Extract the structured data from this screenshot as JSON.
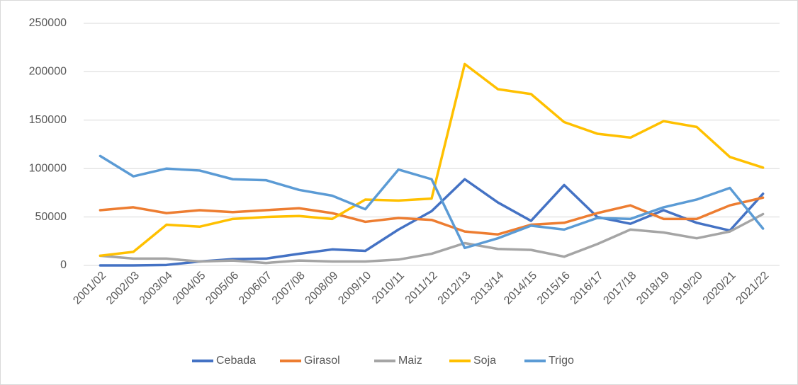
{
  "chart_data": {
    "type": "line",
    "categories": [
      "2001/02",
      "2002/03",
      "2003/04",
      "2004/05",
      "2005/06",
      "2006/07",
      "2007/08",
      "2008/09",
      "2009/10",
      "2010/11",
      "2011/12",
      "2012/13",
      "2013/14",
      "2014/15",
      "2015/16",
      "2016/17",
      "2017/18",
      "2018/19",
      "2019/20",
      "2020/21",
      "2021/22"
    ],
    "series": [
      {
        "name": "Cebada",
        "color": "#4472c4",
        "values": [
          0,
          0,
          500,
          4000,
          6500,
          7000,
          12000,
          16500,
          15000,
          37000,
          56000,
          89000,
          65000,
          46000,
          83000,
          50000,
          43000,
          57000,
          44000,
          36000,
          74000
        ]
      },
      {
        "name": "Girasol",
        "color": "#ed7d31",
        "values": [
          57000,
          60000,
          54000,
          57000,
          55000,
          57000,
          59000,
          54000,
          45000,
          49000,
          47000,
          35000,
          32000,
          42000,
          44000,
          54000,
          62000,
          48000,
          48000,
          62000,
          70000
        ]
      },
      {
        "name": "Maiz",
        "color": "#a5a5a5",
        "values": [
          10000,
          7000,
          7000,
          4000,
          5000,
          2500,
          5000,
          4000,
          4000,
          6000,
          12000,
          23000,
          17000,
          16000,
          9000,
          22000,
          37000,
          34000,
          28000,
          35000,
          53000
        ]
      },
      {
        "name": "Soja",
        "color": "#ffc000",
        "values": [
          10000,
          14000,
          42000,
          40000,
          48000,
          50000,
          51000,
          48000,
          68000,
          67000,
          69000,
          208000,
          182000,
          177000,
          148000,
          136000,
          132000,
          149000,
          143000,
          112000,
          101000
        ]
      },
      {
        "name": "Trigo",
        "color": "#5b9bd5",
        "values": [
          113000,
          92000,
          100000,
          98000,
          89000,
          88000,
          78000,
          72000,
          58000,
          99000,
          89000,
          18000,
          28000,
          41000,
          37000,
          49000,
          48000,
          60000,
          68000,
          80000,
          38000
        ]
      }
    ],
    "ylim": [
      0,
      250000
    ],
    "yticks": [
      0,
      50000,
      100000,
      150000,
      200000,
      250000
    ],
    "grid": true,
    "legend": "bottom"
  }
}
